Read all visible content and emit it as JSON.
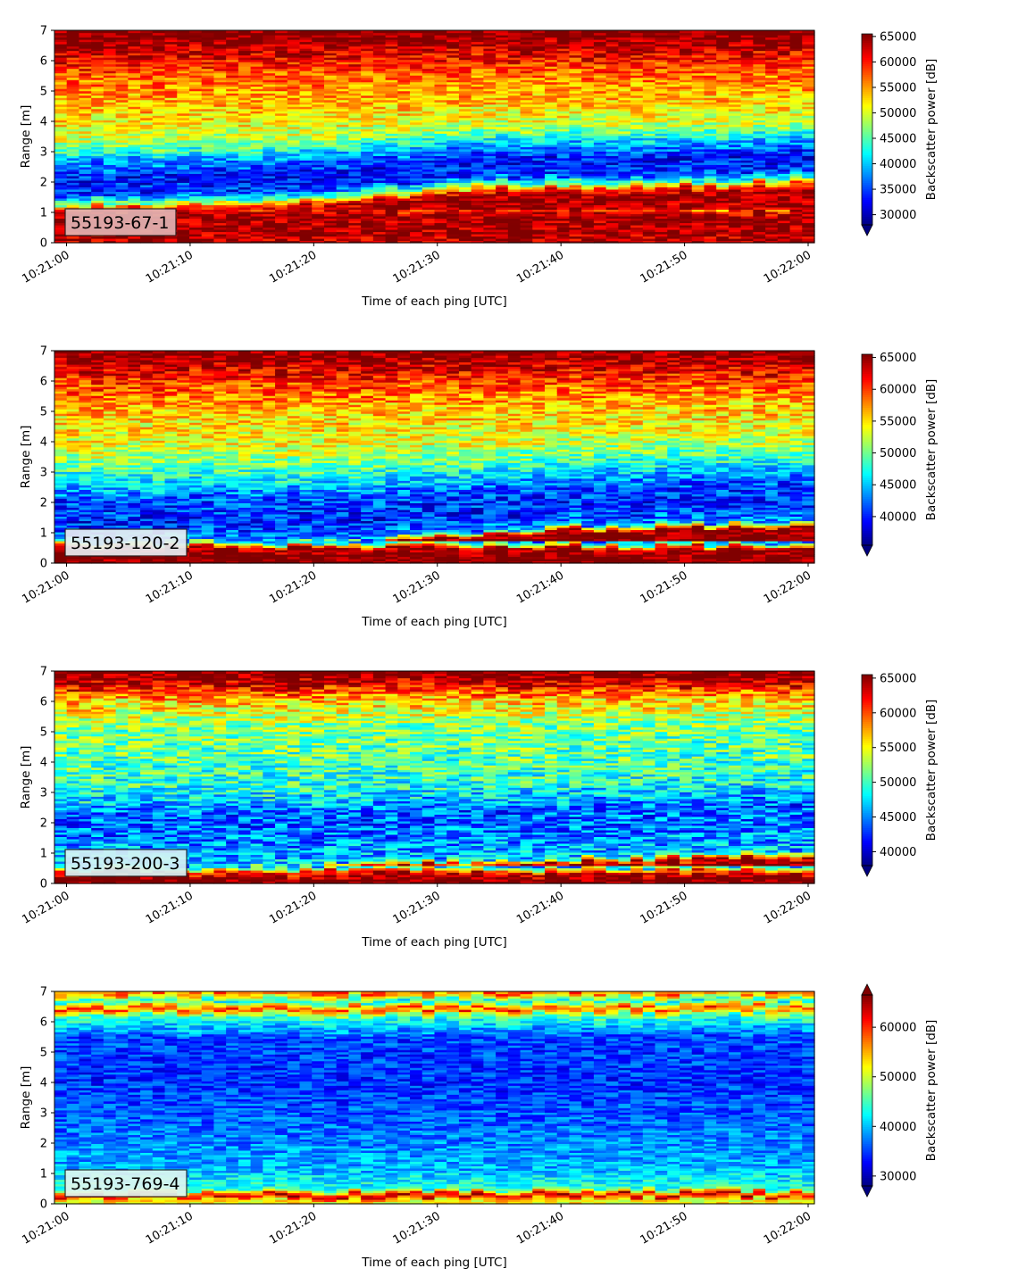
{
  "chart_data": [
    {
      "type": "heatmap",
      "label_box": "55193-67-1",
      "xlabel": "Time of each ping [UTC]",
      "ylabel": "Range [m]",
      "x_ticks": [
        "10:21:00",
        "10:21:10",
        "10:21:20",
        "10:21:30",
        "10:21:40",
        "10:21:50",
        "10:22:00"
      ],
      "y_ticks": [
        0,
        1,
        2,
        3,
        4,
        5,
        6,
        7
      ],
      "ylim": [
        0,
        7
      ],
      "colorbar_label": "Backscatter power [dB]",
      "colorbar_range": [
        28000,
        65500
      ],
      "colorbar_ticks": [
        30000,
        35000,
        40000,
        45000,
        50000,
        55000,
        60000,
        65000
      ],
      "colorbar_extend": "min",
      "colormap": "jet",
      "label_box_color": "#e2b4b4",
      "profile": [
        {
          "range": 0.2,
          "value": 63500
        },
        {
          "range": 0.9,
          "value": 64500
        },
        {
          "range": 1.1,
          "value": 60000
        },
        {
          "range": 1.3,
          "value": 46000
        },
        {
          "range": 1.6,
          "value": 34500
        },
        {
          "range": 2.1,
          "value": 33000
        },
        {
          "range": 2.7,
          "value": 39000
        },
        {
          "range": 3.3,
          "value": 48500
        },
        {
          "range": 4.3,
          "value": 53500
        },
        {
          "range": 5.3,
          "value": 56500
        },
        {
          "range": 6.1,
          "value": 61500
        },
        {
          "range": 6.8,
          "value": 66000
        }
      ],
      "cut_trend": [
        {
          "t": 0,
          "range": 2.0
        },
        {
          "t": 0.3,
          "range": 2.1
        },
        {
          "t": 0.55,
          "range": 2.6
        },
        {
          "t": 1.0,
          "range": 2.8
        }
      ],
      "noise": 4500
    },
    {
      "type": "heatmap",
      "label_box": "55193-120-2",
      "xlabel": "Time of each ping [UTC]",
      "ylabel": "Range [m]",
      "x_ticks": [
        "10:21:00",
        "10:21:10",
        "10:21:20",
        "10:21:30",
        "10:21:40",
        "10:21:50",
        "10:22:00"
      ],
      "y_ticks": [
        0,
        1,
        2,
        3,
        4,
        5,
        6,
        7
      ],
      "ylim": [
        0,
        7
      ],
      "colorbar_label": "Backscatter power [dB]",
      "colorbar_range": [
        35500,
        65500
      ],
      "colorbar_ticks": [
        40000,
        45000,
        50000,
        55000,
        60000,
        65000
      ],
      "colorbar_extend": "min",
      "colormap": "jet",
      "label_box_color": "#e9eef2",
      "profile": [
        {
          "range": 0.2,
          "value": 66000
        },
        {
          "range": 0.5,
          "value": 64500
        },
        {
          "range": 0.7,
          "value": 44000
        },
        {
          "range": 1.2,
          "value": 40000
        },
        {
          "range": 2.0,
          "value": 41500
        },
        {
          "range": 2.8,
          "value": 47500
        },
        {
          "range": 3.8,
          "value": 53500
        },
        {
          "range": 5.0,
          "value": 56000
        },
        {
          "range": 6.0,
          "value": 60500
        },
        {
          "range": 6.8,
          "value": 65500
        }
      ],
      "cut_trend": [
        {
          "t": 0,
          "range": 1.9
        },
        {
          "t": 0.4,
          "range": 2.0
        },
        {
          "t": 0.7,
          "range": 2.5
        },
        {
          "t": 1.0,
          "range": 2.6
        }
      ],
      "noise": 4000
    },
    {
      "type": "heatmap",
      "label_box": "55193-200-3",
      "xlabel": "Time of each ping [UTC]",
      "ylabel": "Range [m]",
      "x_ticks": [
        "10:21:00",
        "10:21:10",
        "10:21:20",
        "10:21:30",
        "10:21:40",
        "10:21:50",
        "10:22:00"
      ],
      "y_ticks": [
        0,
        1,
        2,
        3,
        4,
        5,
        6,
        7
      ],
      "ylim": [
        0,
        7
      ],
      "colorbar_label": "Backscatter power [dB]",
      "colorbar_range": [
        38000,
        65500
      ],
      "colorbar_ticks": [
        40000,
        45000,
        50000,
        55000,
        60000,
        65000
      ],
      "colorbar_extend": "min",
      "colormap": "jet",
      "label_box_color": "#d6f2f5",
      "profile": [
        {
          "range": 0.2,
          "value": 66000
        },
        {
          "range": 0.4,
          "value": 62000
        },
        {
          "range": 0.6,
          "value": 46500
        },
        {
          "range": 1.5,
          "value": 44500
        },
        {
          "range": 2.2,
          "value": 44000
        },
        {
          "range": 3.0,
          "value": 49000
        },
        {
          "range": 4.0,
          "value": 50500
        },
        {
          "range": 5.2,
          "value": 52000
        },
        {
          "range": 6.0,
          "value": 56500
        },
        {
          "range": 6.8,
          "value": 65500
        }
      ],
      "cut_trend": [
        {
          "t": 0,
          "range": 1.8
        },
        {
          "t": 0.5,
          "range": 2.0
        },
        {
          "t": 1.0,
          "range": 2.3
        }
      ],
      "noise": 4200
    },
    {
      "type": "heatmap",
      "label_box": "55193-769-4",
      "xlabel": "Time of each ping [UTC]",
      "ylabel": "Range [m]",
      "x_ticks": [
        "10:21:00",
        "10:21:10",
        "10:21:20",
        "10:21:30",
        "10:21:40",
        "10:21:50",
        "10:22:00"
      ],
      "y_ticks": [
        0,
        1,
        2,
        3,
        4,
        5,
        6,
        7
      ],
      "ylim": [
        0,
        7
      ],
      "colorbar_label": "Backscatter power [dB]",
      "colorbar_range": [
        28000,
        66500
      ],
      "colorbar_ticks": [
        30000,
        40000,
        50000,
        60000
      ],
      "colorbar_extend": "both",
      "colormap": "jet",
      "label_box_color": "#dff6f0",
      "profile": [
        {
          "range": 0.15,
          "value": 52000
        },
        {
          "range": 0.3,
          "value": 65500
        },
        {
          "range": 0.5,
          "value": 44000
        },
        {
          "range": 1.2,
          "value": 39500
        },
        {
          "range": 2.5,
          "value": 37000
        },
        {
          "range": 4.0,
          "value": 34500
        },
        {
          "range": 5.5,
          "value": 35500
        },
        {
          "range": 6.2,
          "value": 45000
        },
        {
          "range": 6.45,
          "value": 60000
        },
        {
          "range": 6.7,
          "value": 42000
        },
        {
          "range": 6.95,
          "value": 58000
        }
      ],
      "cut_trend": [],
      "noise": 3800
    }
  ]
}
